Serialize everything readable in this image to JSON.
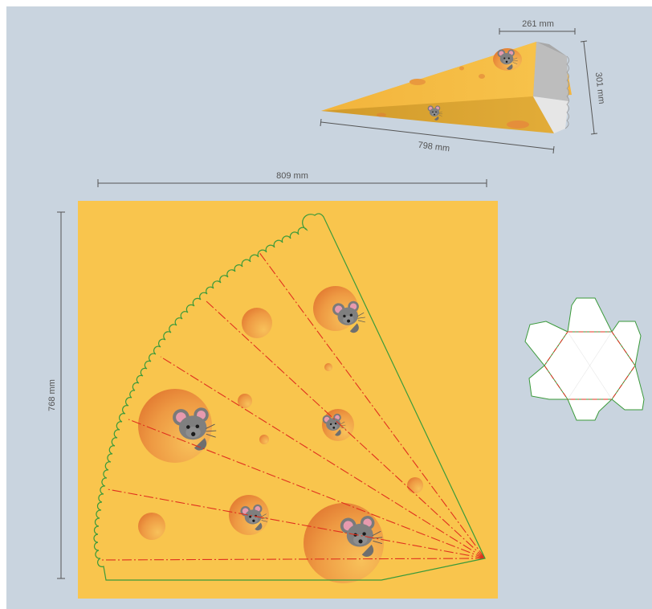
{
  "dimensions": {
    "top_width": "261 mm",
    "top_height": "301 mm",
    "top_length": "798 mm",
    "sheet_width": "809 mm",
    "sheet_height": "768 mm"
  },
  "colors": {
    "background": "#C9D4DF",
    "sheet": "#F9C54D",
    "cut_line": "#3A9A3A",
    "fold_line": "#E0301E",
    "hole_light": "#F7B24E",
    "hole_dark": "#E47F36",
    "mouse_body": "#7A7A7A",
    "mouse_ear_inner": "#E79AAE"
  },
  "icons": {
    "mouse": "mouse-icon",
    "cheese_hole": "cheese-hole"
  }
}
